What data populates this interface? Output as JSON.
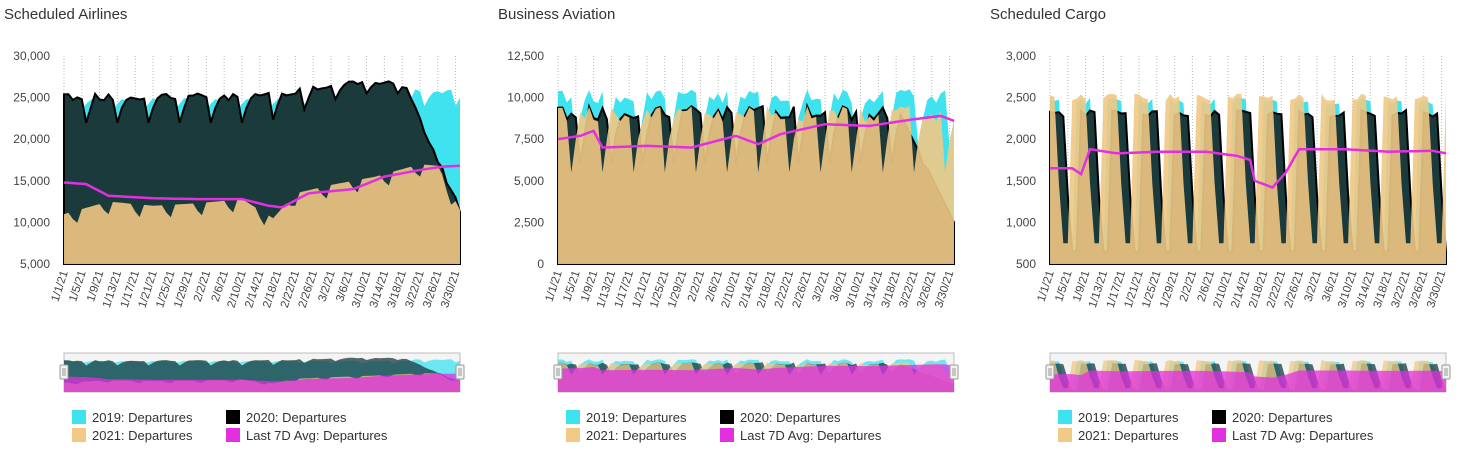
{
  "colors": {
    "y2019": "#3fe3f0",
    "y2020": "#1a3a3c",
    "y2020_edge": "#000000",
    "y2021": "#f1c884",
    "avg": "#e22fe0"
  },
  "legend": [
    {
      "key": "y2019",
      "label": "2019: Departures"
    },
    {
      "key": "y2020",
      "label": "2020: Departures"
    },
    {
      "key": "y2021",
      "label": "2021: Departures"
    },
    {
      "key": "avg",
      "label": "Last 7D Avg: Departures"
    }
  ],
  "x_tick_labels": [
    "1/1/21",
    "1/5/21",
    "1/9/21",
    "1/13/21",
    "1/17/21",
    "1/21/21",
    "1/25/21",
    "1/29/21",
    "2/2/21",
    "2/6/21",
    "2/10/21",
    "2/14/21",
    "2/18/21",
    "2/22/21",
    "2/26/21",
    "3/2/21",
    "3/6/21",
    "3/10/21",
    "3/14/21",
    "3/18/21",
    "3/22/21",
    "3/26/21",
    "3/30/21"
  ],
  "chart_data": [
    {
      "type": "area",
      "title": "Scheduled Airlines",
      "ylim": [
        5000,
        30000
      ],
      "yticks": [
        5000,
        10000,
        15000,
        20000,
        25000,
        30000
      ],
      "ytick_labels": [
        "5,000",
        "10,000",
        "15,000",
        "20,000",
        "25,000",
        "30,000"
      ],
      "x_start": "1/1/21",
      "x_end": "3/30/21",
      "x_tick_labels": [
        "1/1/21",
        "1/5/21",
        "1/9/21",
        "1/13/21",
        "1/17/21",
        "1/21/21",
        "1/25/21",
        "1/29/21",
        "2/2/21",
        "2/6/21",
        "2/10/21",
        "2/14/21",
        "2/18/21",
        "2/22/21",
        "2/26/21",
        "3/2/21",
        "3/6/21",
        "3/10/21",
        "3/14/21",
        "3/18/21",
        "3/22/21",
        "3/26/21",
        "3/30/21"
      ],
      "series": [
        {
          "name": "2019: Departures",
          "key": "y2019",
          "weekly_high": 25000,
          "weekly_low": 23500,
          "end_high": 26000,
          "end_low": 24000,
          "period": 7
        },
        {
          "name": "2020: Departures",
          "key": "y2020",
          "weekly_high": 25500,
          "weekly_low": 22000,
          "rise_to": 27000,
          "drop_start": "3/18/21",
          "end_value": 11500,
          "period": 7
        },
        {
          "name": "2021: Departures",
          "key": "y2021",
          "points": [
            [
              0,
              11000
            ],
            [
              10,
              12500
            ],
            [
              20,
              12000
            ],
            [
              30,
              12300
            ],
            [
              40,
              12800
            ],
            [
              47,
              10500
            ],
            [
              52,
              13500
            ],
            [
              60,
              14500
            ],
            [
              70,
              15500
            ],
            [
              80,
              17000
            ],
            [
              84,
              16800
            ],
            [
              89,
              11500
            ]
          ],
          "weekly_dip": 1500
        },
        {
          "name": "Last 7D Avg: Departures",
          "key": "avg",
          "points": [
            [
              0,
              14800
            ],
            [
              5,
              14600
            ],
            [
              10,
              13200
            ],
            [
              20,
              12900
            ],
            [
              30,
              12800
            ],
            [
              40,
              12800
            ],
            [
              46,
              12000
            ],
            [
              49,
              11800
            ],
            [
              55,
              13500
            ],
            [
              65,
              14000
            ],
            [
              72,
              15500
            ],
            [
              80,
              16300
            ],
            [
              85,
              16700
            ],
            [
              89,
              16800
            ]
          ]
        }
      ]
    },
    {
      "type": "area",
      "title": "Business Aviation",
      "ylim": [
        0,
        12500
      ],
      "yticks": [
        0,
        2500,
        5000,
        7500,
        10000,
        12500
      ],
      "ytick_labels": [
        "0",
        "2,500",
        "5,000",
        "7,500",
        "10,000",
        "12,500"
      ],
      "x_start": "1/1/21",
      "x_end": "3/30/21",
      "x_tick_labels": [
        "1/1/21",
        "1/5/21",
        "1/9/21",
        "1/13/21",
        "1/17/21",
        "1/21/21",
        "1/25/21",
        "1/29/21",
        "2/2/21",
        "2/6/21",
        "2/10/21",
        "2/14/21",
        "2/18/21",
        "2/22/21",
        "2/26/21",
        "3/2/21",
        "3/6/21",
        "3/10/21",
        "3/14/21",
        "3/18/21",
        "3/22/21",
        "3/26/21",
        "3/30/21"
      ],
      "series": [
        {
          "name": "2019: Departures",
          "key": "y2019",
          "weekly_high": 10500,
          "weekly_low": 7000,
          "period": 7
        },
        {
          "name": "2020: Departures",
          "key": "y2020",
          "weekly_high": 9500,
          "weekly_low": 6000,
          "drop_start": "3/18/21",
          "end_value": 2500,
          "period": 7
        },
        {
          "name": "2021: Departures",
          "key": "y2021",
          "weekly_high": 9500,
          "weekly_low": 5500,
          "period": 7
        },
        {
          "name": "Last 7D Avg: Departures",
          "key": "avg",
          "points": [
            [
              0,
              7500
            ],
            [
              5,
              7700
            ],
            [
              8,
              8000
            ],
            [
              10,
              7000
            ],
            [
              20,
              7100
            ],
            [
              30,
              7000
            ],
            [
              40,
              7700
            ],
            [
              45,
              7200
            ],
            [
              50,
              7800
            ],
            [
              60,
              8400
            ],
            [
              70,
              8300
            ],
            [
              80,
              8700
            ],
            [
              86,
              8900
            ],
            [
              89,
              8600
            ]
          ]
        }
      ]
    },
    {
      "type": "area",
      "title": "Scheduled Cargo",
      "ylim": [
        500,
        3000
      ],
      "yticks": [
        500,
        1000,
        1500,
        2000,
        2500,
        3000
      ],
      "ytick_labels": [
        "500",
        "1,000",
        "1,500",
        "2,000",
        "2,500",
        "3,000"
      ],
      "x_start": "1/1/21",
      "x_end": "3/30/21",
      "x_tick_labels": [
        "1/1/21",
        "1/5/21",
        "1/9/21",
        "1/13/21",
        "1/17/21",
        "1/21/21",
        "1/25/21",
        "1/29/21",
        "2/2/21",
        "2/6/21",
        "2/10/21",
        "2/14/21",
        "2/18/21",
        "2/22/21",
        "2/26/21",
        "3/2/21",
        "3/6/21",
        "3/10/21",
        "3/14/21",
        "3/18/21",
        "3/22/21",
        "3/26/21",
        "3/30/21"
      ],
      "series": [
        {
          "name": "2019: Departures",
          "key": "y2019",
          "weekly_high": 2500,
          "weekly_low": 700,
          "period": 7
        },
        {
          "name": "2020: Departures",
          "key": "y2020",
          "weekly_high": 2350,
          "weekly_low": 650,
          "period": 7
        },
        {
          "name": "2021: Departures",
          "key": "y2021",
          "weekly_high": 2550,
          "weekly_low": 750,
          "period": 7
        },
        {
          "name": "Last 7D Avg: Departures",
          "key": "avg",
          "points": [
            [
              0,
              1650
            ],
            [
              5,
              1650
            ],
            [
              7,
              1580
            ],
            [
              9,
              1880
            ],
            [
              15,
              1830
            ],
            [
              25,
              1850
            ],
            [
              35,
              1850
            ],
            [
              42,
              1800
            ],
            [
              45,
              1750
            ],
            [
              46,
              1500
            ],
            [
              50,
              1420
            ],
            [
              53,
              1600
            ],
            [
              56,
              1880
            ],
            [
              66,
              1880
            ],
            [
              76,
              1850
            ],
            [
              86,
              1860
            ],
            [
              89,
              1830
            ]
          ]
        }
      ]
    }
  ]
}
